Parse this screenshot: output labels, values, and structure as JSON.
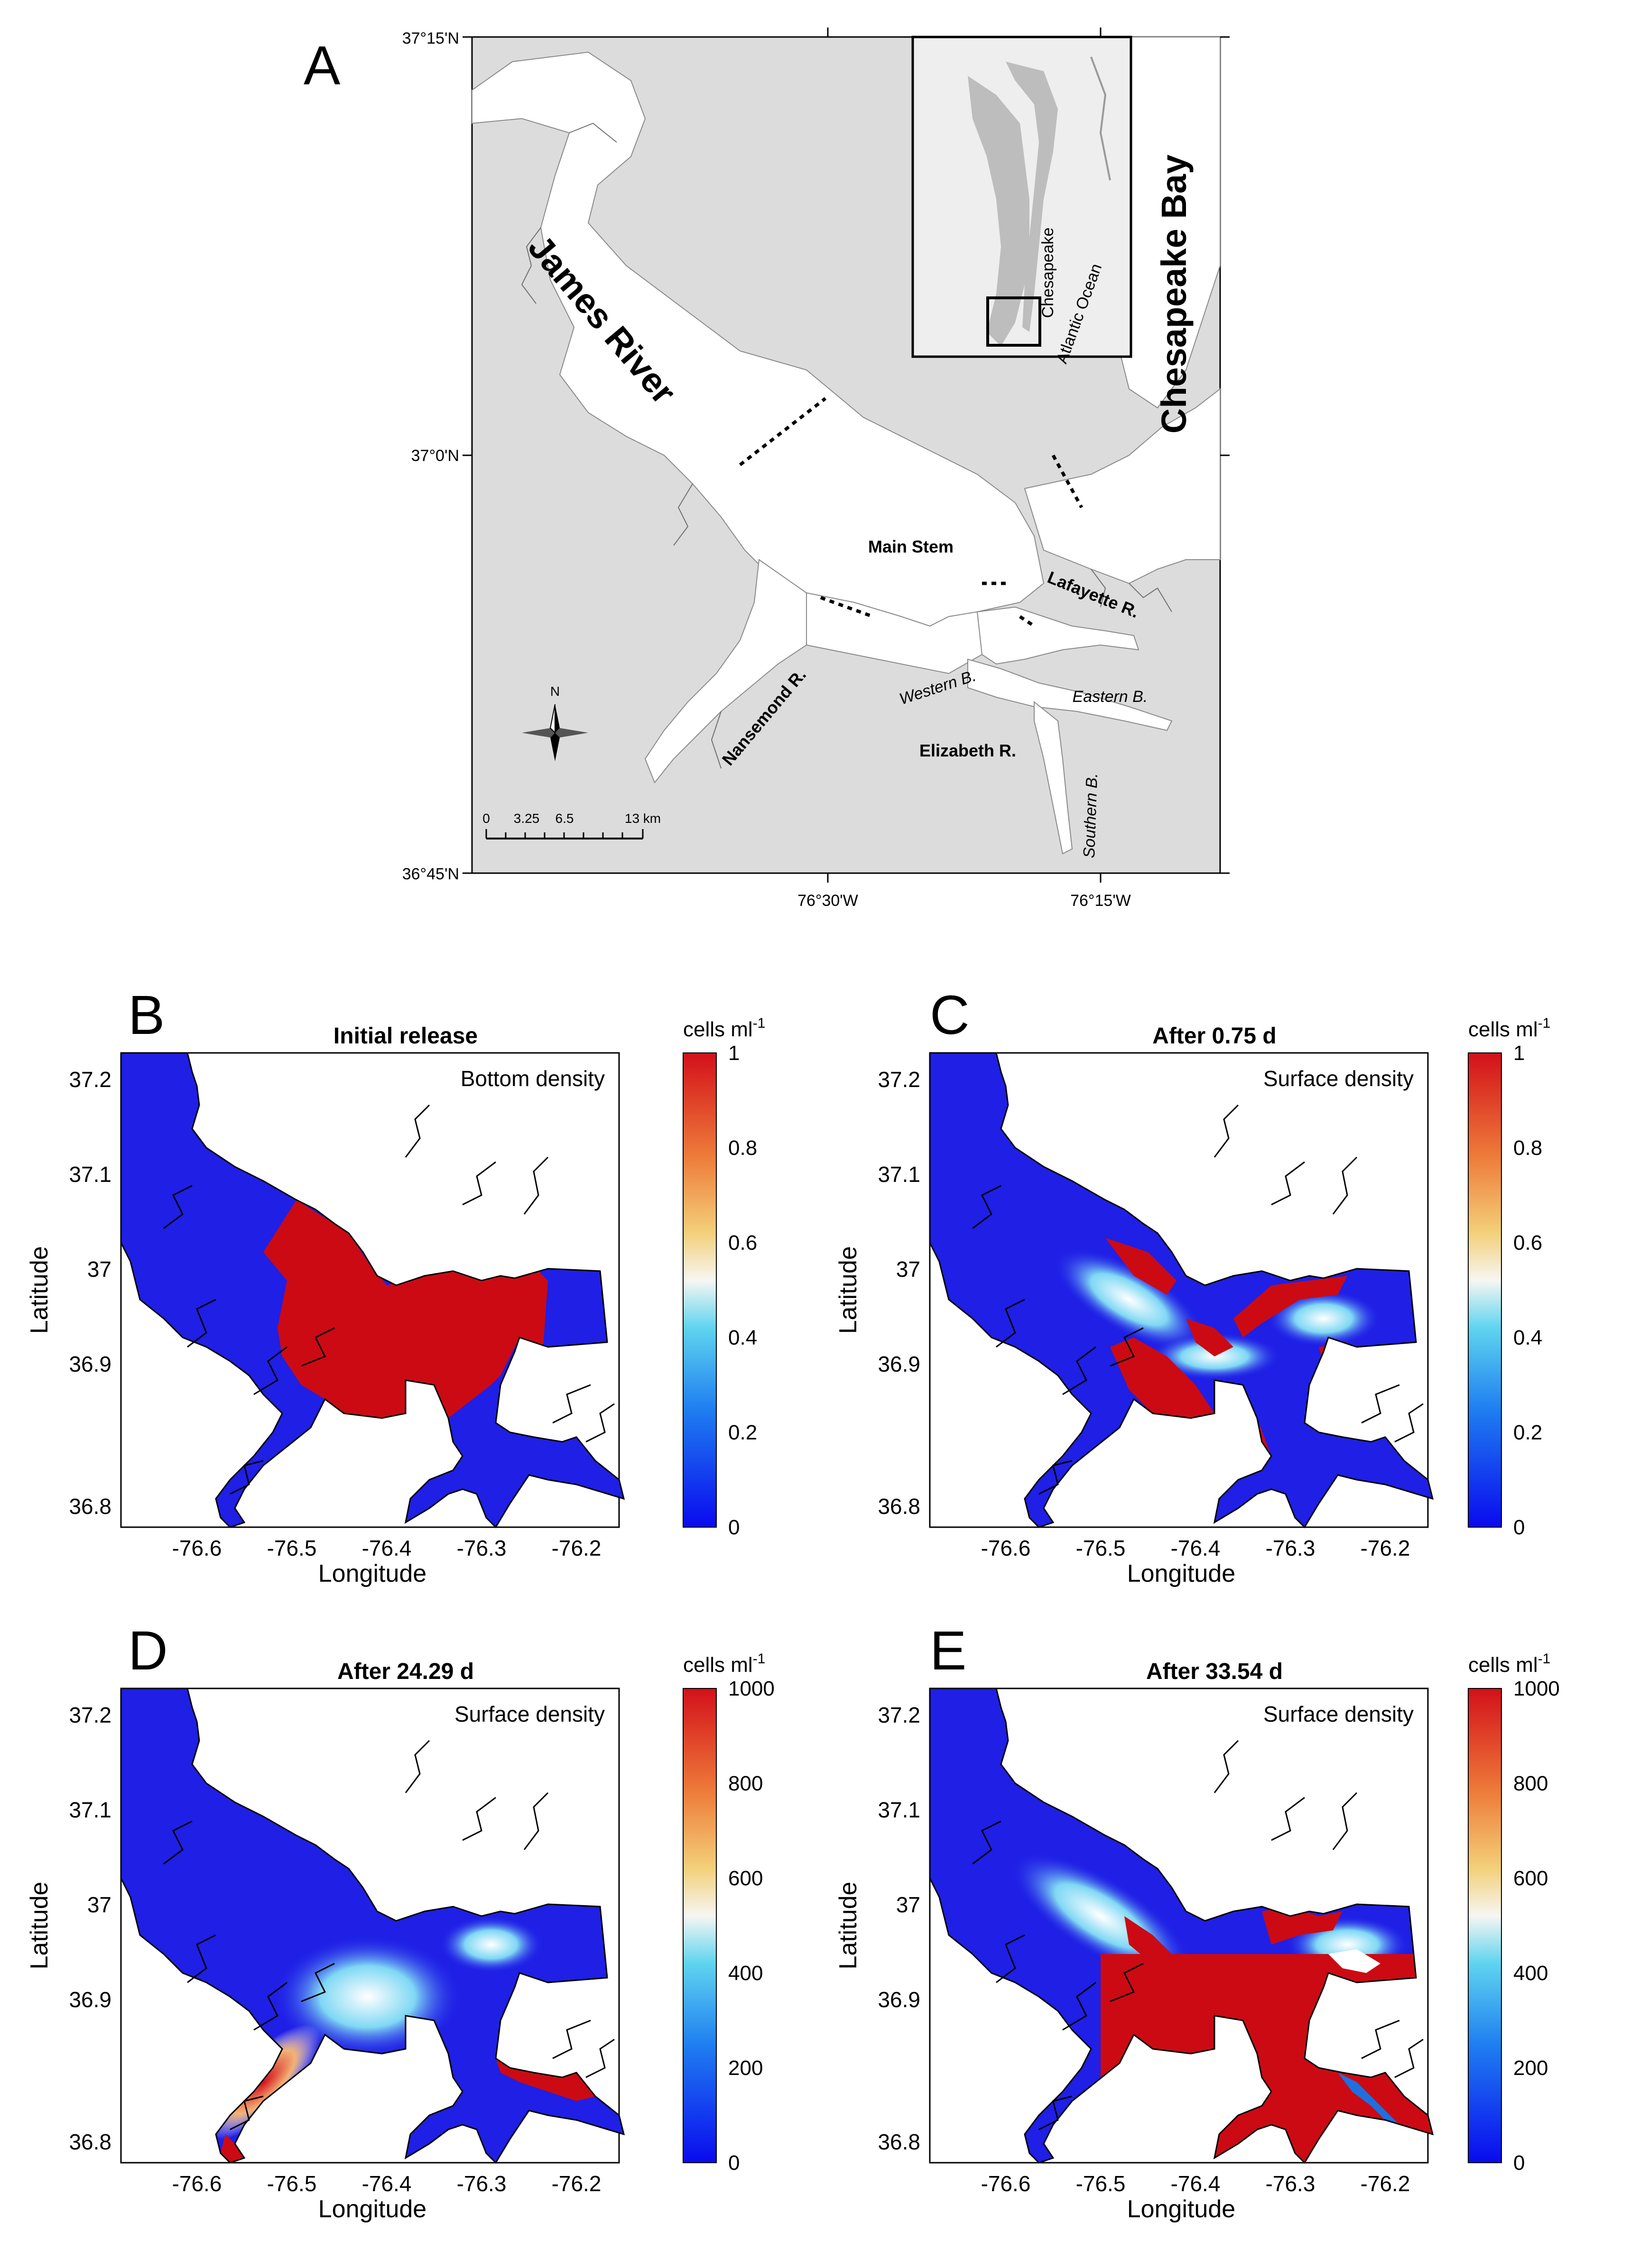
{
  "figure_letter_a": "A",
  "map_a": {
    "lat_labels": [
      "37°15'N",
      "37°0'N",
      "36°45'N"
    ],
    "lon_labels": [
      "76°30'W",
      "76°15'W"
    ],
    "labels": {
      "james_river": "James River",
      "chesapeake_bay": "Chesapeake Bay",
      "main_stem": "Main Stem",
      "lafayette": "Lafayette R.",
      "nansemond": "Nansemond R.",
      "western_b": "Western B.",
      "eastern_b": "Eastern B.",
      "elizabeth": "Elizabeth R.",
      "southern_b": "Southern B."
    },
    "inset": {
      "chesapeake": "Chesapeake",
      "atlantic": "Atlantic Ocean"
    },
    "compass": "N",
    "scale": {
      "ticks": [
        "0",
        "3.25",
        "6.5",
        "13 km"
      ]
    }
  },
  "panels": [
    {
      "letter": "B",
      "title": "Initial release",
      "subtitle": "Bottom density",
      "cbar_title": "cells ml",
      "cbar_exp": "-1",
      "cbar_ticks": [
        "1",
        "0.8",
        "0.6",
        "0.4",
        "0.2",
        "0"
      ]
    },
    {
      "letter": "C",
      "title": "After 0.75 d",
      "subtitle": "Surface density",
      "cbar_title": "cells ml",
      "cbar_exp": "-1",
      "cbar_ticks": [
        "1",
        "0.8",
        "0.6",
        "0.4",
        "0.2",
        "0"
      ]
    },
    {
      "letter": "D",
      "title": "After 24.29 d",
      "subtitle": "Surface density",
      "cbar_title": "cells ml",
      "cbar_exp": "-1",
      "cbar_ticks": [
        "1000",
        "800",
        "600",
        "400",
        "200",
        "0"
      ]
    },
    {
      "letter": "E",
      "title": "After 33.54 d",
      "subtitle": "Surface density",
      "cbar_title": "cells ml",
      "cbar_exp": "-1",
      "cbar_ticks": [
        "1000",
        "800",
        "600",
        "400",
        "200",
        "0"
      ]
    }
  ],
  "axes": {
    "xlabel": "Longitude",
    "ylabel": "Latitude",
    "xticks": [
      "-76.6",
      "-76.5",
      "-76.4",
      "-76.3",
      "-76.2"
    ],
    "yticks": [
      "37.2",
      "37.1",
      "37",
      "36.9",
      "36.8"
    ]
  },
  "colors": {
    "high": "#cc0a14",
    "low": "#1f1fe6",
    "land": "#e3e3e3",
    "water": "#ffffff"
  }
}
